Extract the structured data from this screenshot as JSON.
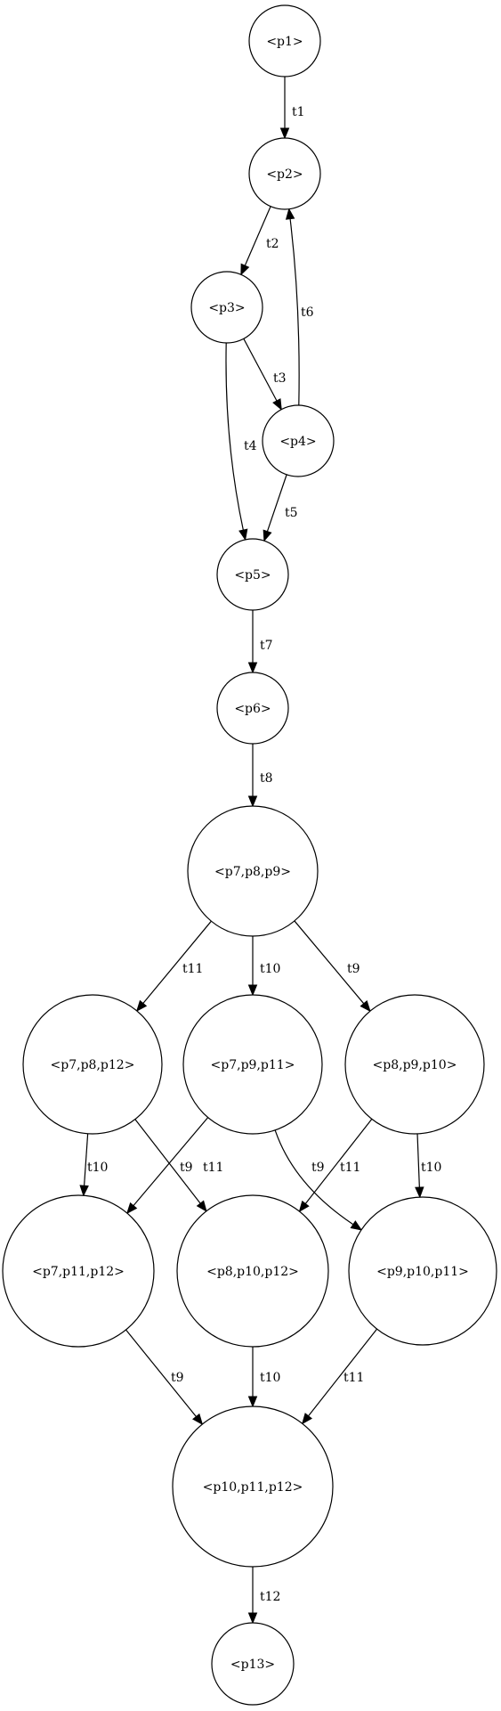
{
  "graph": {
    "nodes": [
      {
        "id": "n1",
        "label": "<p1>"
      },
      {
        "id": "n2",
        "label": "<p2>"
      },
      {
        "id": "n3",
        "label": "<p3>"
      },
      {
        "id": "n4",
        "label": "<p4>"
      },
      {
        "id": "n5",
        "label": "<p5>"
      },
      {
        "id": "n6",
        "label": "<p6>"
      },
      {
        "id": "n7",
        "label": "<p7,p8,p9>"
      },
      {
        "id": "n8",
        "label": "<p7,p8,p12>"
      },
      {
        "id": "n9",
        "label": "<p7,p9,p11>"
      },
      {
        "id": "n10",
        "label": "<p8,p9,p10>"
      },
      {
        "id": "n11",
        "label": "<p7,p11,p12>"
      },
      {
        "id": "n12",
        "label": "<p8,p10,p12>"
      },
      {
        "id": "n13",
        "label": "<p9,p10,p11>"
      },
      {
        "id": "n14",
        "label": "<p10,p11,p12>"
      },
      {
        "id": "n15",
        "label": "<p13>"
      }
    ],
    "edges": [
      {
        "from": "n1",
        "to": "n2",
        "label": "t1"
      },
      {
        "from": "n2",
        "to": "n3",
        "label": "t2"
      },
      {
        "from": "n3",
        "to": "n4",
        "label": "t3"
      },
      {
        "from": "n3",
        "to": "n5",
        "label": "t4"
      },
      {
        "from": "n4",
        "to": "n2",
        "label": "t6"
      },
      {
        "from": "n4",
        "to": "n5",
        "label": "t5"
      },
      {
        "from": "n5",
        "to": "n6",
        "label": "t7"
      },
      {
        "from": "n6",
        "to": "n7",
        "label": "t8"
      },
      {
        "from": "n7",
        "to": "n8",
        "label": "t11"
      },
      {
        "from": "n7",
        "to": "n9",
        "label": "t10"
      },
      {
        "from": "n7",
        "to": "n10",
        "label": "t9"
      },
      {
        "from": "n8",
        "to": "n11",
        "label": "t10"
      },
      {
        "from": "n8",
        "to": "n12",
        "label": "t9"
      },
      {
        "from": "n9",
        "to": "n11",
        "label": "t11"
      },
      {
        "from": "n9",
        "to": "n13",
        "label": "t9"
      },
      {
        "from": "n10",
        "to": "n12",
        "label": "t11"
      },
      {
        "from": "n10",
        "to": "n13",
        "label": "t10"
      },
      {
        "from": "n11",
        "to": "n14",
        "label": "t9"
      },
      {
        "from": "n12",
        "to": "n14",
        "label": "t10"
      },
      {
        "from": "n13",
        "to": "n14",
        "label": "t11"
      },
      {
        "from": "n14",
        "to": "n15",
        "label": "t12"
      }
    ]
  }
}
